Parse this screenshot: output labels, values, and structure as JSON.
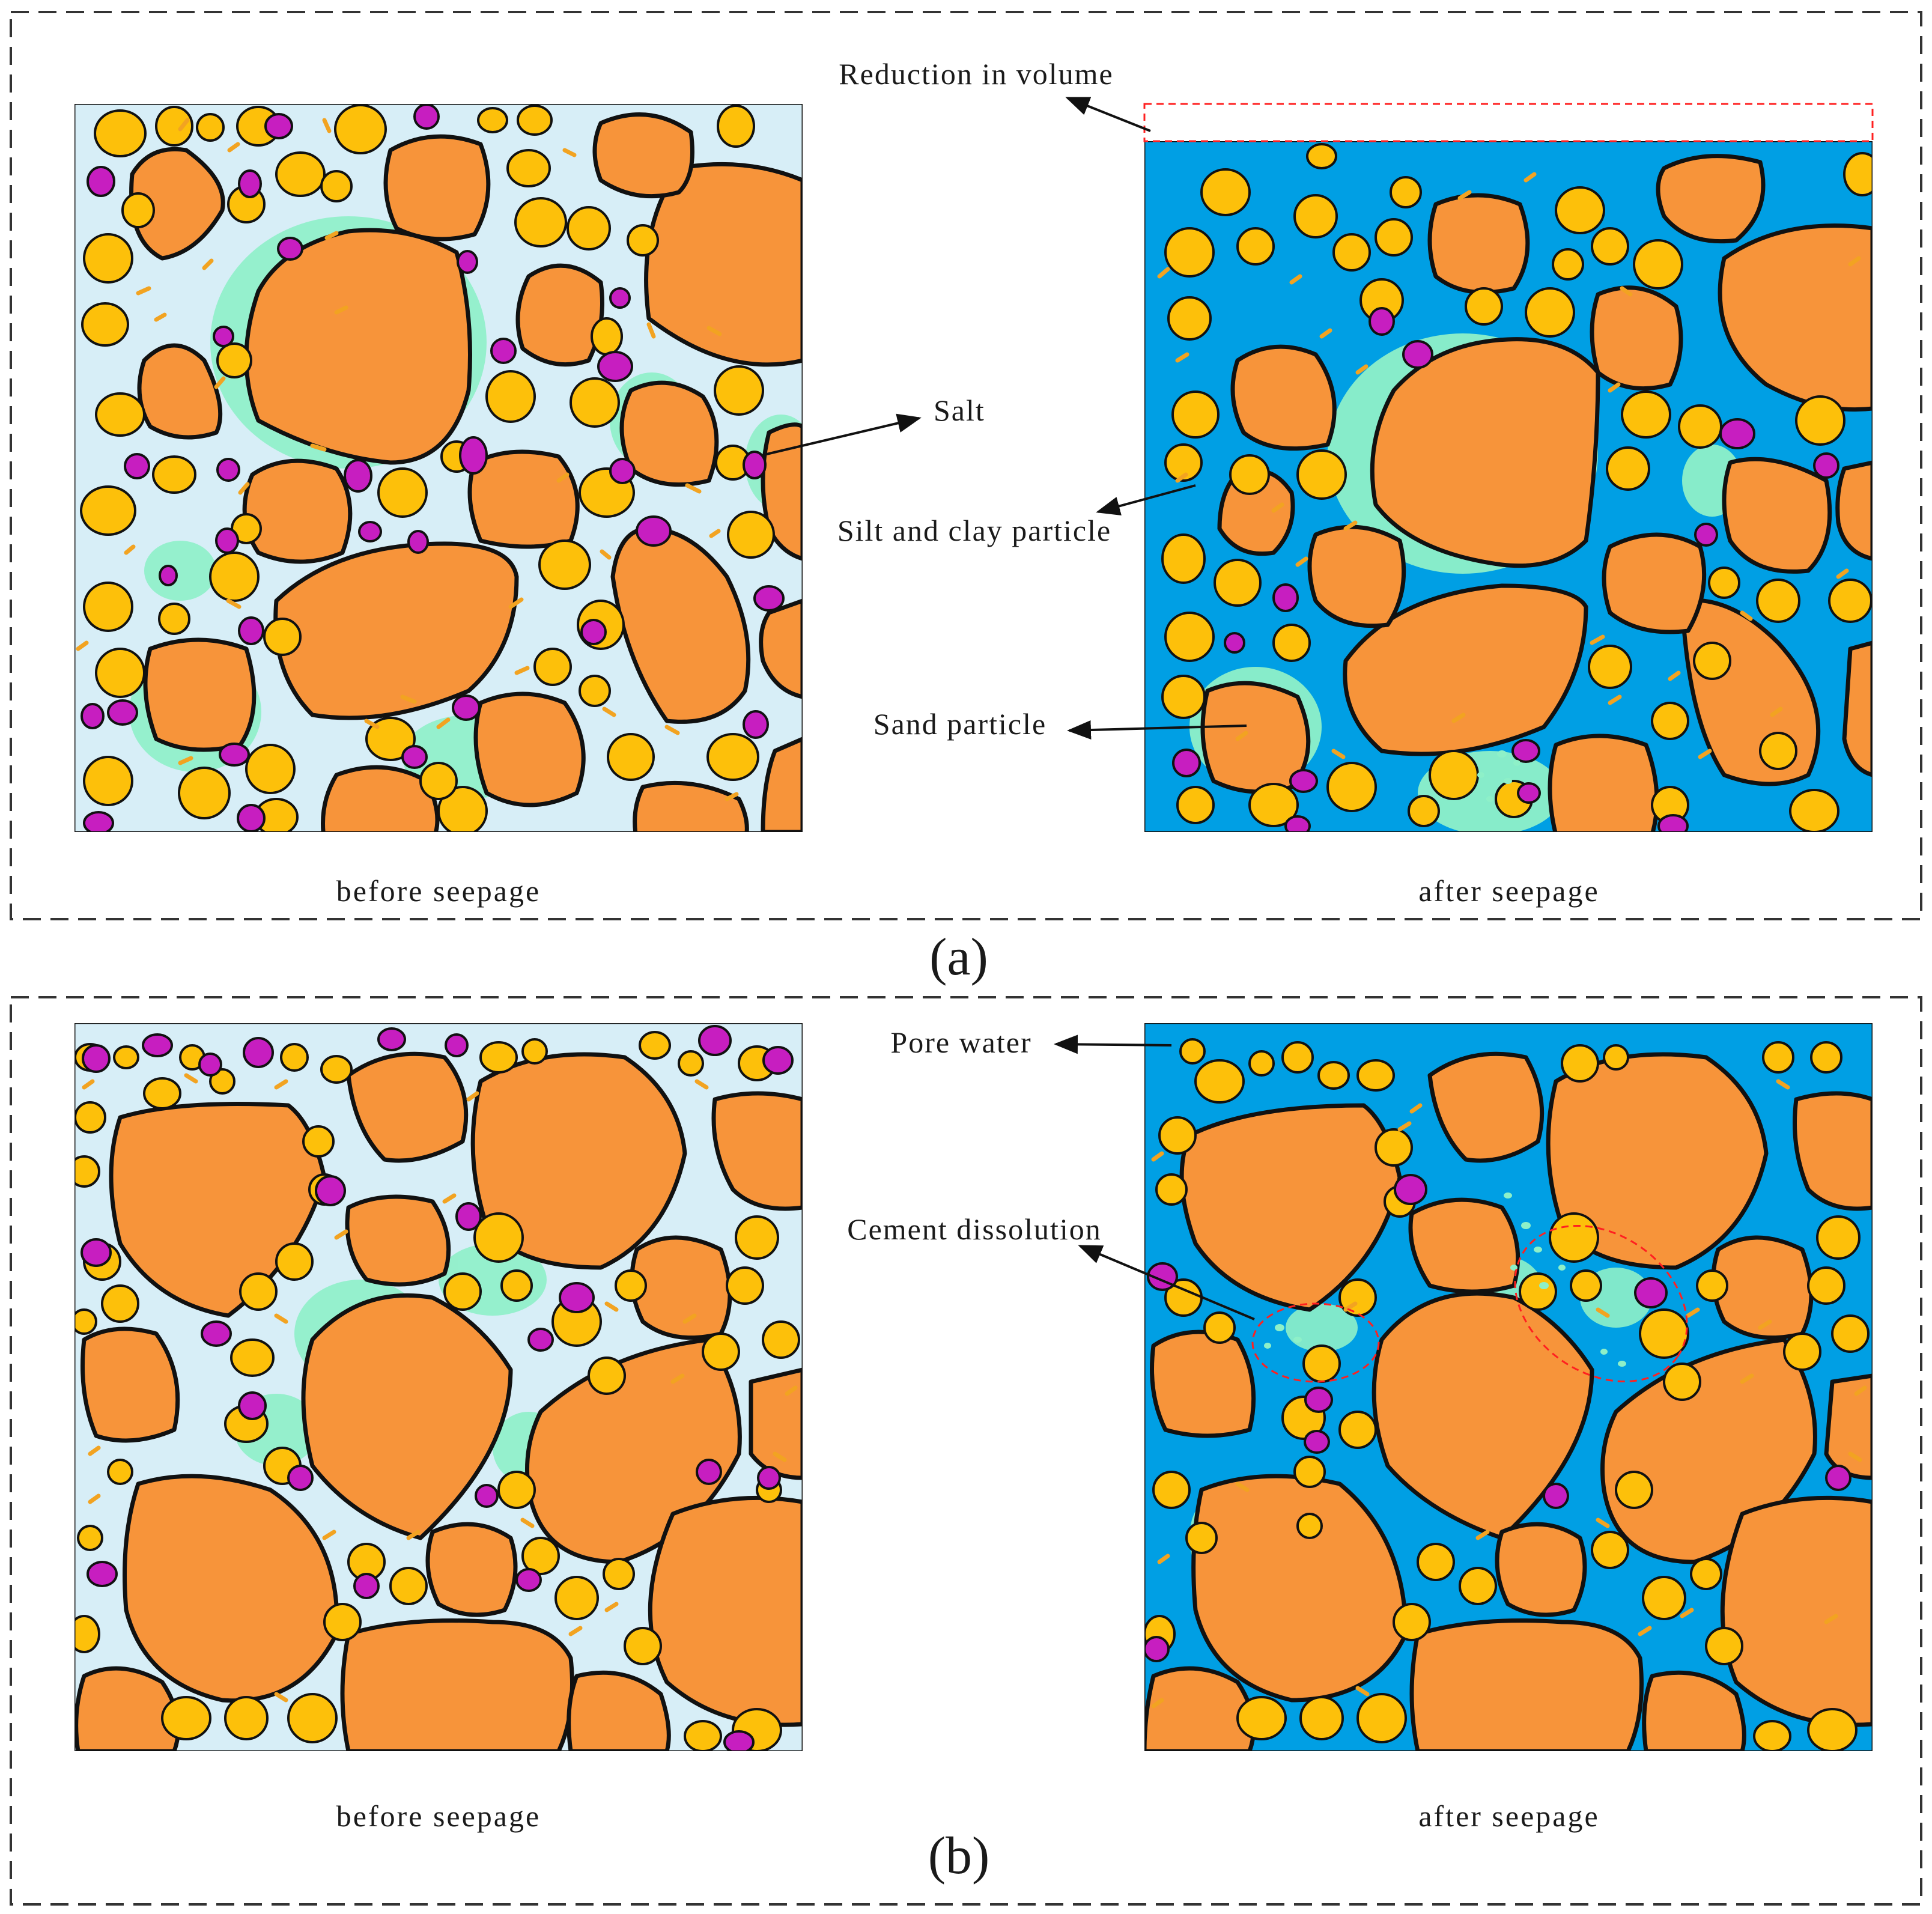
{
  "parts": [
    {
      "id": "a",
      "label": "(a)",
      "before_caption": "before  seepage",
      "after_caption": "after  seepage",
      "annotations": {
        "volume": "Reduction  in volume",
        "salt": "Salt",
        "silt": "Silt and clay particle",
        "sand": "Sand  particle"
      }
    },
    {
      "id": "b",
      "label": "(b)",
      "before_caption": "before  seepage",
      "after_caption": "after  seepage",
      "annotations": {
        "pore": "Pore  water",
        "cement": "Cement dissolution"
      }
    }
  ],
  "colors": {
    "sand_particle": "#F7943A",
    "yellow_grain": "#FDC00A",
    "salt": "#C71EC0",
    "fine_grain": "#F2A321",
    "dry_pore": "#D7EEF7",
    "clay_cement": "#8EF0C8",
    "pore_water": "#009FE4",
    "outline": "#111111",
    "volume_marker": "#FF2020"
  }
}
